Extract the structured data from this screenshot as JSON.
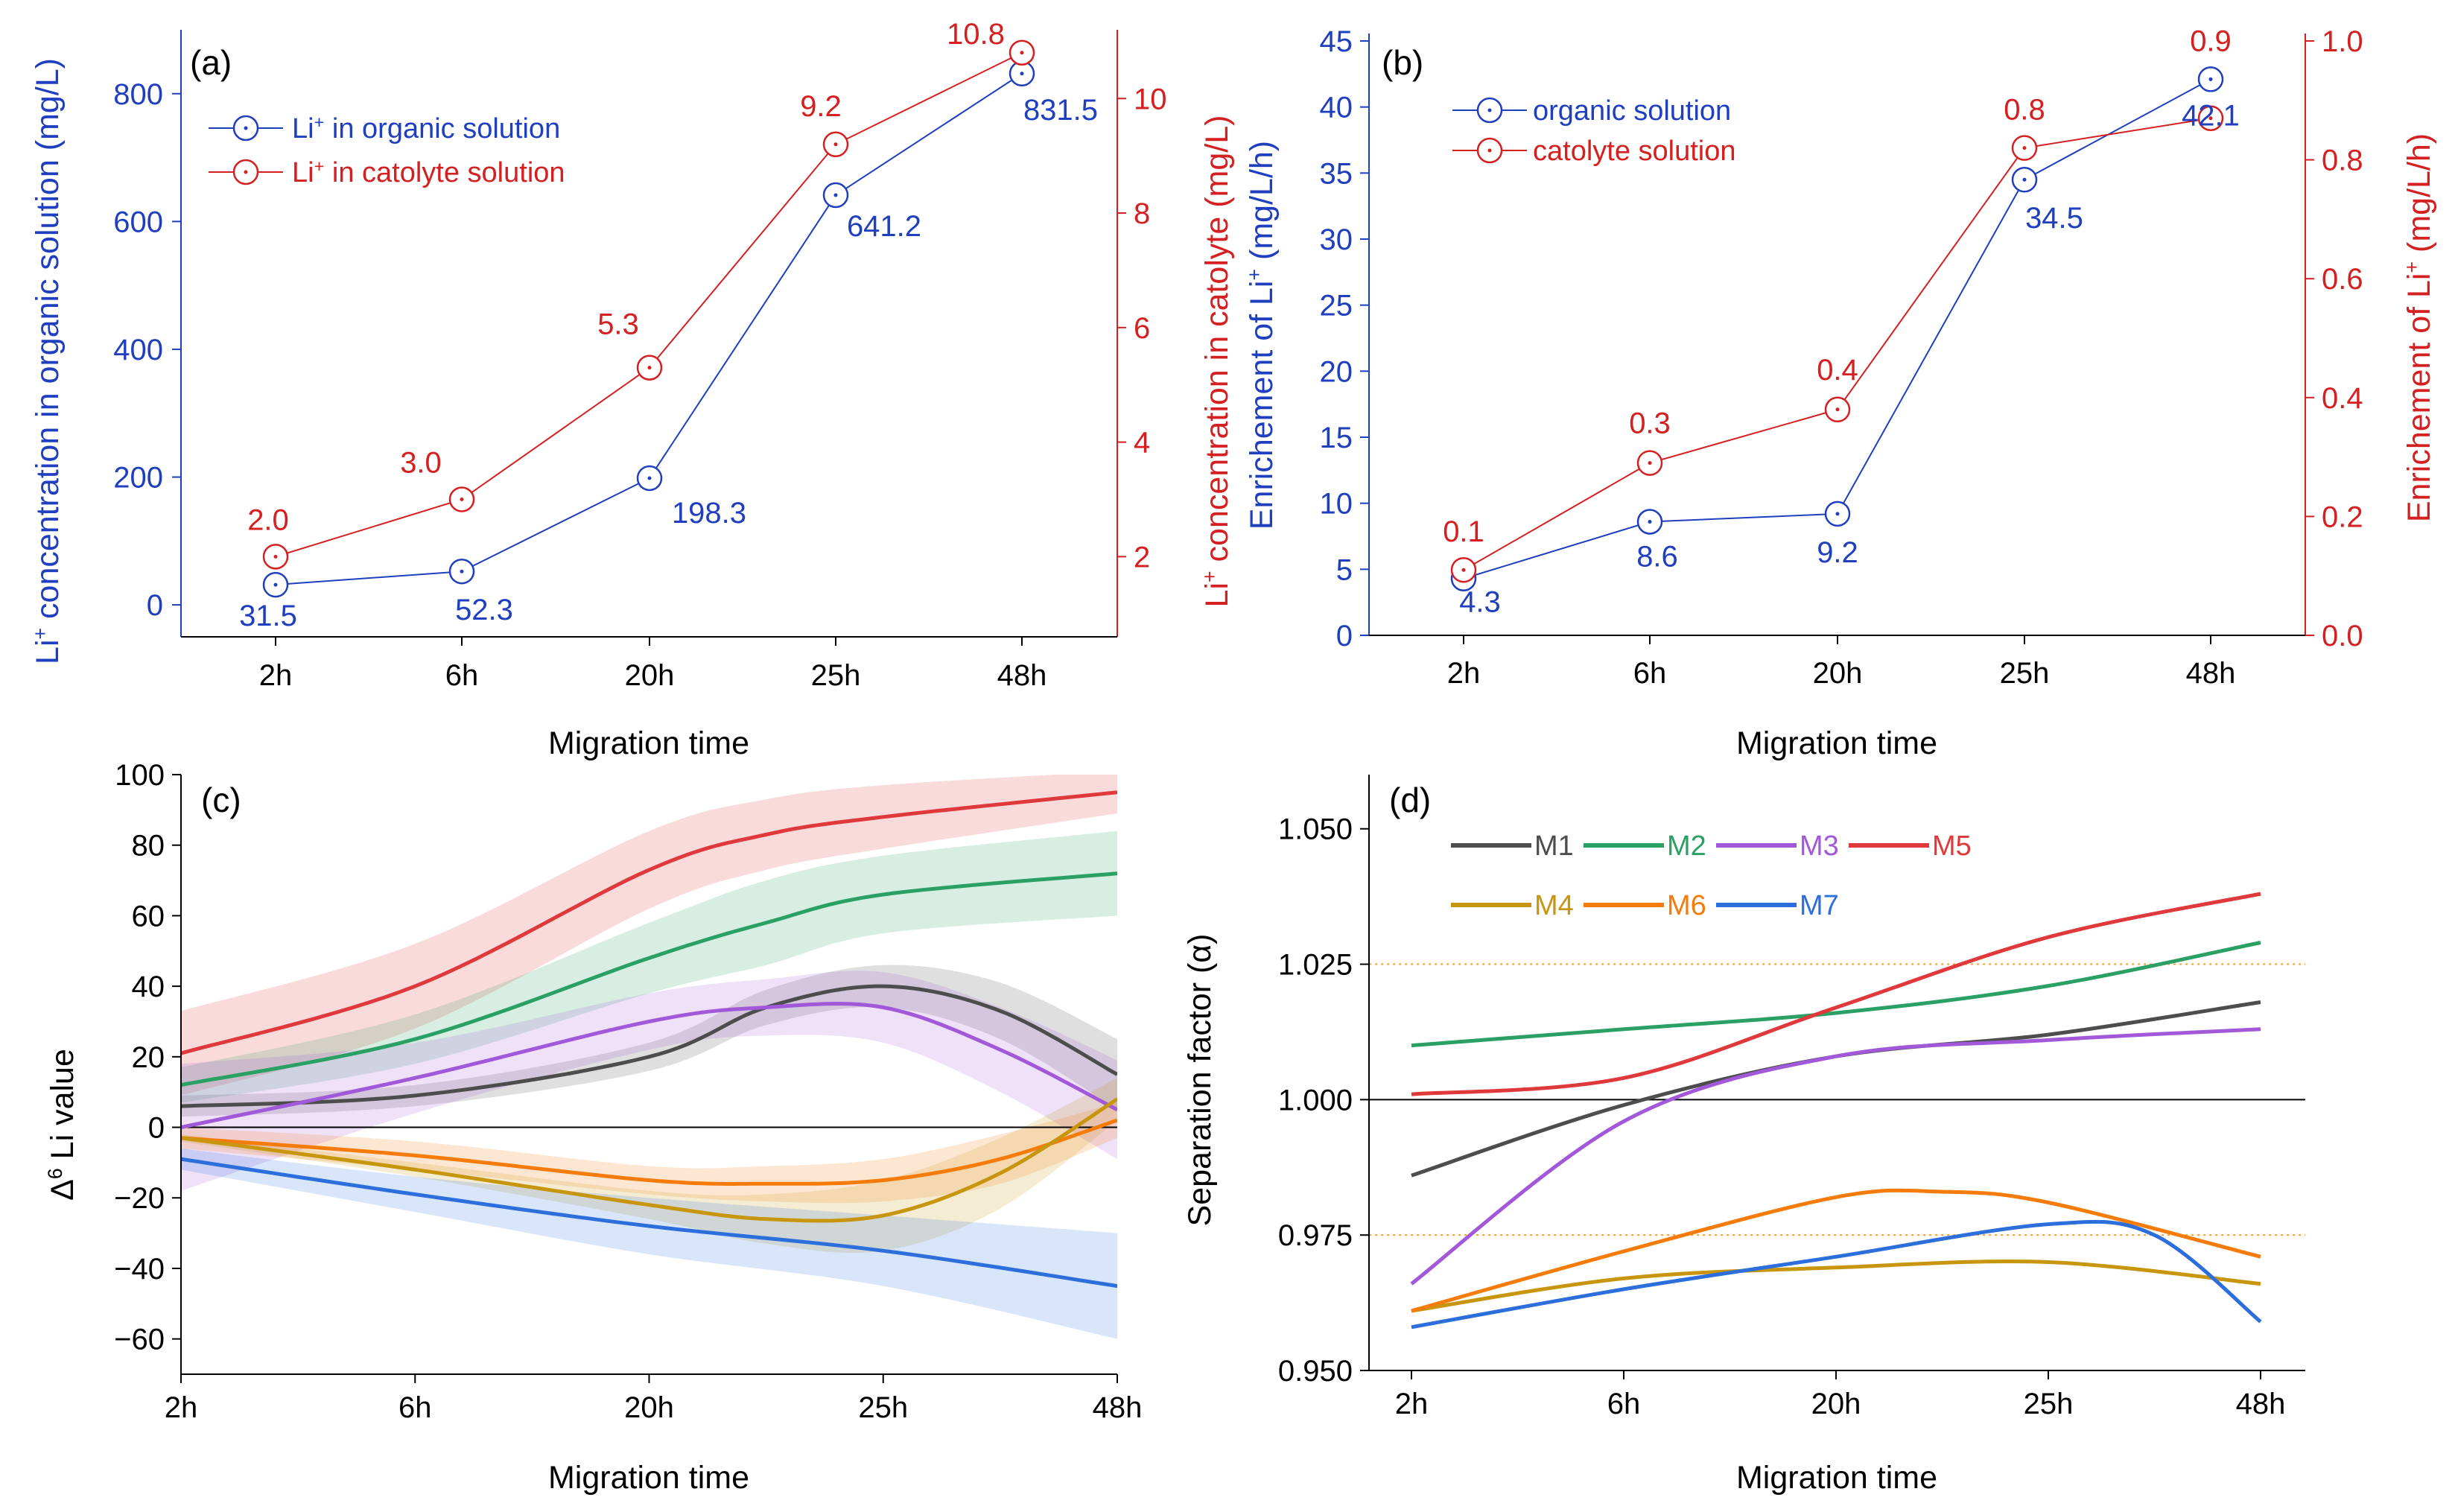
{
  "colors": {
    "blue": "#1f3fbf",
    "red": "#d42020",
    "black": "#000000"
  },
  "chart_data": [
    {
      "panel": "(a)",
      "type": "line",
      "xlabel": "Migration time",
      "categories": [
        "2h",
        "6h",
        "20h",
        "25h",
        "48h"
      ],
      "ylabel_left": {
        "pre": "Li",
        "sup": "+",
        "post": " concentration in organic solution (mg/L)"
      },
      "ylabel_right": {
        "pre": "Li",
        "sup": "+",
        "post": " concentration in catolyte (mg/L)"
      },
      "ylim_left": [
        -50,
        900
      ],
      "yticks_left": [
        0,
        200,
        400,
        600,
        800
      ],
      "ylim_right": [
        0.6,
        11.2
      ],
      "yticks_right": [
        2,
        4,
        6,
        8,
        10
      ],
      "series": [
        {
          "name_pre": "Li",
          "name_sup": "+",
          "name_post": " in organic solution",
          "axis": "left",
          "color": "#1f3fbf",
          "values": [
            31.5,
            52.3,
            198.3,
            641.2,
            831.5
          ],
          "labels": [
            "31.5",
            "52.3",
            "198.3",
            "641.2",
            "831.5"
          ]
        },
        {
          "name_pre": "Li",
          "name_sup": "+",
          "name_post": " in catolyte solution",
          "axis": "right",
          "color": "#d42020",
          "values": [
            2.0,
            3.0,
            5.3,
            9.2,
            10.8
          ],
          "labels": [
            "2.0",
            "3.0",
            "5.3",
            "9.2",
            "10.8"
          ]
        }
      ],
      "legend": "top-left"
    },
    {
      "panel": "(b)",
      "type": "line",
      "xlabel": "Migration time",
      "categories": [
        "2h",
        "6h",
        "20h",
        "25h",
        "48h"
      ],
      "ylabel_left": {
        "pre": "Enrichement of Li",
        "sup": "+",
        "post": " (mg/L/h)"
      },
      "ylabel_right": {
        "pre": "Enrichement of Li",
        "sup": "+",
        "post": " (mg/L/h)"
      },
      "ylim_left": [
        0,
        45
      ],
      "yticks_left": [
        0,
        5,
        10,
        15,
        20,
        25,
        30,
        35,
        40,
        45
      ],
      "ylim_right": [
        0,
        1.0
      ],
      "yticks_right": [
        "0.0",
        "0.2",
        "0.4",
        "0.6",
        "0.8",
        "1.0"
      ],
      "series": [
        {
          "name": "organic solution",
          "axis": "left",
          "color": "#1f3fbf",
          "values": [
            4.3,
            8.6,
            9.2,
            34.5,
            42.1
          ],
          "labels": [
            "4.3",
            "8.6",
            "9.2",
            "34.5",
            "42.1"
          ]
        },
        {
          "name": "catolyte solution",
          "axis": "right",
          "color": "#d42020",
          "values": [
            0.11,
            0.29,
            0.38,
            0.82,
            0.87
          ],
          "labels": [
            "0.1",
            "0.3",
            "0.4",
            "0.8",
            "0.9"
          ]
        }
      ],
      "legend": "top-left"
    },
    {
      "panel": "(c)",
      "type": "area",
      "xlabel": "Migration time",
      "ylabel": {
        "pre": "Δ",
        "sup": "6",
        "post": " Li value"
      },
      "categories": [
        "2h",
        "6h",
        "20h",
        "25h",
        "48h"
      ],
      "ylim": [
        -70,
        100
      ],
      "yticks": [
        -60,
        -40,
        -20,
        0,
        20,
        40,
        60,
        80,
        100
      ],
      "xlim": [
        0,
        4
      ],
      "series": [
        {
          "name": "M5",
          "color": "#e0393b",
          "x": [
            0,
            1,
            2,
            2.5,
            3,
            4
          ],
          "values": [
            21,
            40,
            73,
            83,
            88,
            95
          ],
          "band": [
            12,
            12,
            11,
            10,
            9,
            6
          ]
        },
        {
          "name": "M2",
          "color": "#2aa065",
          "x": [
            0,
            1,
            2,
            2.5,
            3,
            4
          ],
          "values": [
            12,
            25,
            48,
            58,
            66,
            72
          ],
          "band": [
            5,
            7,
            10,
            12,
            11,
            12
          ]
        },
        {
          "name": "M1",
          "color": "#4d4d4d",
          "x": [
            0,
            1,
            2,
            2.5,
            3,
            3.5,
            4
          ],
          "values": [
            6,
            9,
            20,
            34,
            40,
            33,
            15
          ],
          "band": [
            3,
            3,
            4,
            5,
            6,
            8,
            10
          ]
        },
        {
          "name": "M3",
          "color": "#a259d9",
          "x": [
            0,
            1,
            2,
            2.5,
            3,
            3.5,
            4
          ],
          "values": [
            0,
            14,
            30,
            34,
            34,
            22,
            5
          ],
          "band": [
            18,
            10,
            8,
            8,
            10,
            12,
            14
          ]
        },
        {
          "name": "M6",
          "color": "#f57c0a",
          "x": [
            0,
            1,
            2,
            2.5,
            3,
            3.5,
            4
          ],
          "values": [
            -3,
            -8,
            -15,
            -16,
            -15,
            -9,
            2
          ],
          "band": [
            3,
            4,
            4,
            5,
            6,
            7,
            5
          ]
        },
        {
          "name": "M4",
          "color": "#c7960e",
          "x": [
            0,
            1,
            2,
            2.5,
            3,
            3.5,
            4
          ],
          "values": [
            -3,
            -12,
            -22,
            -26,
            -25,
            -13,
            8
          ],
          "band": [
            1,
            2,
            4,
            7,
            10,
            10,
            6
          ]
        },
        {
          "name": "M7",
          "color": "#2c6fdc",
          "x": [
            0,
            1,
            2,
            3,
            4
          ],
          "values": [
            -9,
            -19,
            -28,
            -35,
            -45
          ],
          "band": [
            3,
            5,
            8,
            10,
            15
          ]
        }
      ]
    },
    {
      "panel": "(d)",
      "type": "line",
      "xlabel": "Migration time",
      "ylabel": "Separation factor (α)",
      "categories": [
        "2h",
        "6h",
        "20h",
        "25h",
        "48h"
      ],
      "ylim": [
        0.95,
        1.06
      ],
      "yticks": [
        "0.950",
        "0.975",
        "1.000",
        "1.025",
        "1.050"
      ],
      "xlim": [
        0,
        4
      ],
      "reference_lines": [
        {
          "y": 1.0,
          "style": "solid"
        },
        {
          "y": 1.025,
          "style": "dotted"
        },
        {
          "y": 0.975,
          "style": "dotted"
        }
      ],
      "series": [
        {
          "name": "M1",
          "color": "#4d4d4d",
          "x": [
            0,
            1,
            2,
            3,
            4
          ],
          "values": [
            0.986,
            0.999,
            1.008,
            1.012,
            1.018
          ]
        },
        {
          "name": "M2",
          "color": "#2aa065",
          "x": [
            0,
            1,
            2,
            3,
            4
          ],
          "values": [
            1.01,
            1.013,
            1.016,
            1.021,
            1.029
          ]
        },
        {
          "name": "M3",
          "color": "#a259d9",
          "x": [
            0,
            1,
            2,
            3,
            4
          ],
          "values": [
            0.966,
            0.996,
            1.008,
            1.011,
            1.013
          ]
        },
        {
          "name": "M5",
          "color": "#e0393b",
          "x": [
            0,
            1,
            2,
            3,
            4
          ],
          "values": [
            1.001,
            1.004,
            1.017,
            1.03,
            1.038
          ]
        },
        {
          "name": "M4",
          "color": "#c7960e",
          "x": [
            0,
            1,
            2,
            3,
            4
          ],
          "values": [
            0.961,
            0.967,
            0.969,
            0.97,
            0.966
          ]
        },
        {
          "name": "M6",
          "color": "#f57c0a",
          "x": [
            0,
            1,
            2,
            2.5,
            3,
            4
          ],
          "values": [
            0.961,
            0.972,
            0.982,
            0.983,
            0.981,
            0.971
          ]
        },
        {
          "name": "M7",
          "color": "#2c6fdc",
          "x": [
            0,
            1,
            2,
            3,
            3.5,
            4
          ],
          "values": [
            0.958,
            0.965,
            0.971,
            0.977,
            0.975,
            0.959
          ]
        }
      ],
      "legend_rows": [
        [
          "M1",
          "M2",
          "M3",
          "M5"
        ],
        [
          "M4",
          "M6",
          "M7"
        ]
      ]
    }
  ]
}
